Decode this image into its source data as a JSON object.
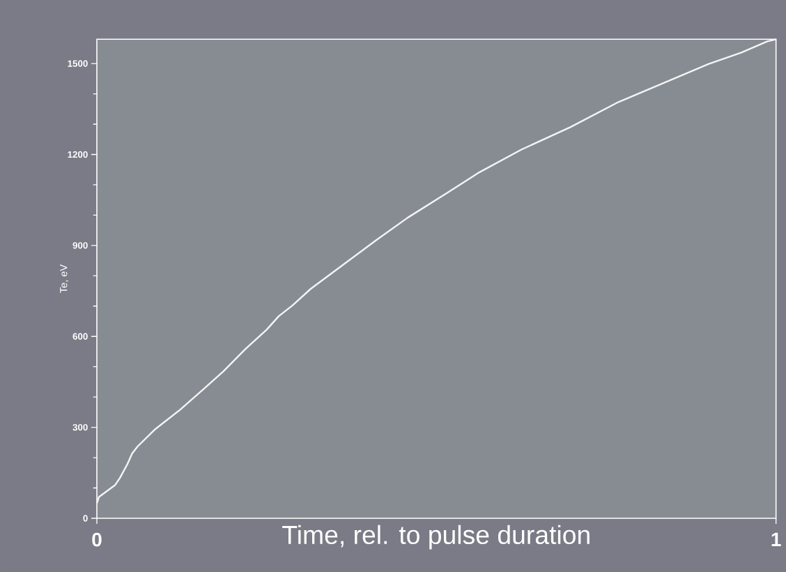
{
  "chart_data": {
    "type": "line",
    "xlabel": "Time,  rel. to pulse duration",
    "ylabel": "Te, eV",
    "x": [
      0,
      0.003,
      0.027,
      0.034,
      0.045,
      0.052,
      0.06,
      0.086,
      0.122,
      0.157,
      0.186,
      0.219,
      0.25,
      0.268,
      0.288,
      0.315,
      0.363,
      0.411,
      0.458,
      0.515,
      0.563,
      0.625,
      0.697,
      0.768,
      0.839,
      0.901,
      0.949,
      0.987,
      1
    ],
    "series": [
      {
        "color": "#f4f4f4",
        "values": [
          50,
          70,
          110,
          133,
          179,
          214,
          237,
          294,
          357,
          426,
          484,
          559,
          622,
          667,
          702,
          757,
          837,
          917,
          992,
          1072,
          1141,
          1216,
          1290,
          1373,
          1440,
          1499,
          1536,
          1573,
          1580
        ]
      }
    ],
    "xlim": [
      0,
      1
    ],
    "ylim": [
      0,
      1580
    ],
    "xticks": [
      0,
      1
    ],
    "yticks": [
      0,
      300,
      600,
      900,
      1200,
      1500
    ],
    "grid": false,
    "marker": "none",
    "line_style": "solid"
  }
}
